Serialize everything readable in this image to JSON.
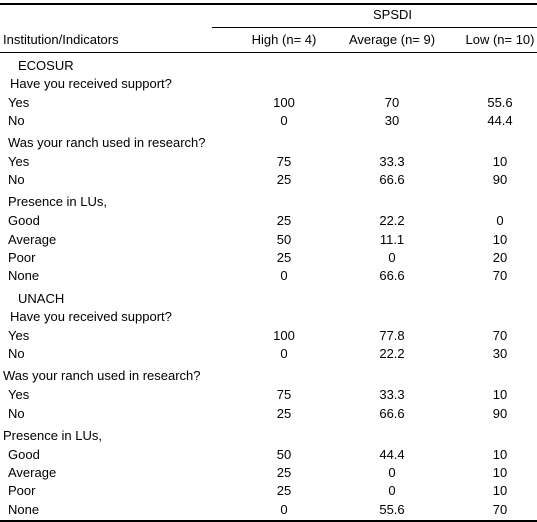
{
  "header": {
    "group": "SPSDI",
    "label": "Institution/Indicators",
    "cols": [
      "High (n= 4)",
      "Average (n= 9)",
      "Low (n= 10)"
    ]
  },
  "ecosur": {
    "name": "ECOSUR",
    "q1": "Have you received support?",
    "q1_rows": [
      {
        "label": "Yes",
        "v": [
          "100",
          "70",
          "55.6"
        ]
      },
      {
        "label": "No",
        "v": [
          "0",
          "30",
          "44.4"
        ]
      }
    ],
    "q2": "Was your ranch used in research?",
    "q2_rows": [
      {
        "label": "Yes",
        "v": [
          "75",
          "33.3",
          "10"
        ]
      },
      {
        "label": "No",
        "v": [
          "25",
          "66.6",
          "90"
        ]
      }
    ],
    "q3": "Presence in LUs,",
    "q3_rows": [
      {
        "label": "Good",
        "v": [
          "25",
          "22.2",
          "0"
        ]
      },
      {
        "label": "Average",
        "v": [
          "50",
          "11.1",
          "10"
        ]
      },
      {
        "label": "Poor",
        "v": [
          "25",
          "0",
          "20"
        ]
      },
      {
        "label": "None",
        "v": [
          "0",
          "66.6",
          "70"
        ]
      }
    ]
  },
  "unach": {
    "name": "UNACH",
    "q1": "Have you received support?",
    "q1_rows": [
      {
        "label": "Yes",
        "v": [
          "100",
          "77.8",
          "70"
        ]
      },
      {
        "label": "No",
        "v": [
          "0",
          "22.2",
          "30"
        ]
      }
    ],
    "q2": "Was your ranch used in research?",
    "q2_rows": [
      {
        "label": "Yes",
        "v": [
          "75",
          "33.3",
          "10"
        ]
      },
      {
        "label": "No",
        "v": [
          "25",
          "66.6",
          "90"
        ]
      }
    ],
    "q3": "Presence in LUs,",
    "q3_rows": [
      {
        "label": "Good",
        "v": [
          "50",
          "44.4",
          "10"
        ]
      },
      {
        "label": "Average",
        "v": [
          "25",
          "0",
          "10"
        ]
      },
      {
        "label": "Poor",
        "v": [
          "25",
          "0",
          "10"
        ]
      },
      {
        "label": "None",
        "v": [
          "0",
          "55.6",
          "70"
        ]
      }
    ]
  }
}
